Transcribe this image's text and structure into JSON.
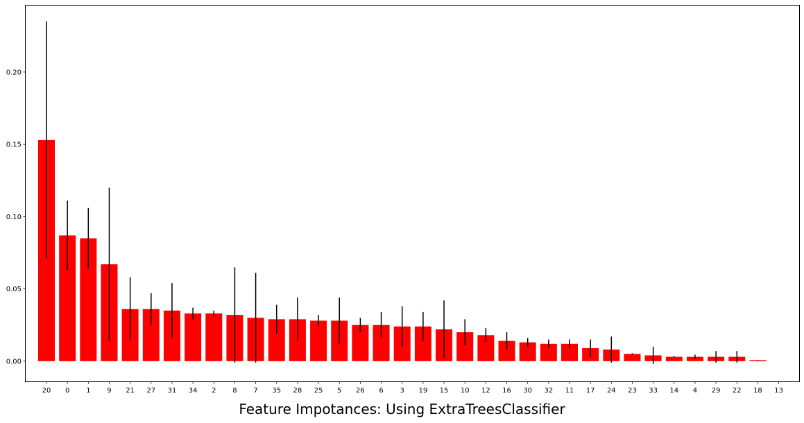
{
  "chart_data": {
    "type": "bar",
    "title": "Feature Impotances: Using ExtraTreesClassifier",
    "xlabel": "",
    "ylabel": "",
    "ylim": [
      -0.014,
      0.246
    ],
    "yticks": [
      0.0,
      0.05,
      0.1,
      0.15,
      0.2
    ],
    "ytick_labels": [
      "0.00",
      "0.05",
      "0.10",
      "0.15",
      "0.20"
    ],
    "grid": false,
    "legend": "none",
    "bar_color": "#ff0000",
    "error_color": "#000000",
    "categories": [
      "20",
      "0",
      "1",
      "9",
      "21",
      "27",
      "31",
      "34",
      "2",
      "8",
      "7",
      "35",
      "28",
      "25",
      "5",
      "26",
      "6",
      "3",
      "19",
      "15",
      "10",
      "12",
      "16",
      "30",
      "32",
      "11",
      "17",
      "24",
      "23",
      "33",
      "14",
      "4",
      "29",
      "22",
      "18",
      "13"
    ],
    "values": [
      0.153,
      0.087,
      0.085,
      0.067,
      0.036,
      0.036,
      0.035,
      0.033,
      0.033,
      0.032,
      0.03,
      0.029,
      0.029,
      0.028,
      0.028,
      0.025,
      0.025,
      0.024,
      0.024,
      0.022,
      0.02,
      0.018,
      0.014,
      0.013,
      0.012,
      0.012,
      0.009,
      0.008,
      0.005,
      0.004,
      0.003,
      0.003,
      0.003,
      0.003,
      0.0007,
      0.0
    ],
    "errors": [
      0.082,
      0.024,
      0.021,
      0.053,
      0.022,
      0.011,
      0.019,
      0.004,
      0.002,
      0.033,
      0.031,
      0.01,
      0.015,
      0.004,
      0.016,
      0.005,
      0.009,
      0.014,
      0.01,
      0.02,
      0.009,
      0.005,
      0.006,
      0.003,
      0.003,
      0.003,
      0.006,
      0.009,
      0.0005,
      0.006,
      0.0005,
      0.0015,
      0.004,
      0.004,
      0.0002,
      0.0
    ]
  }
}
